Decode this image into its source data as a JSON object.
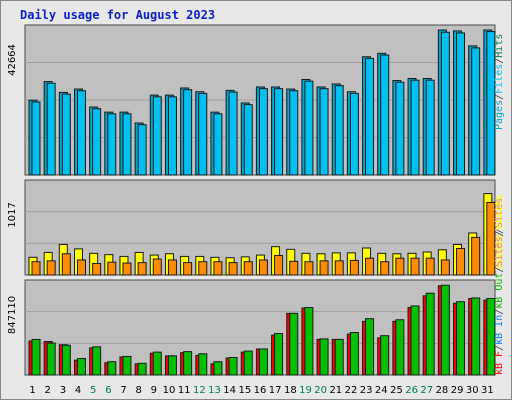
{
  "title": "Daily usage for August 2023",
  "colors": {
    "background": "#E8E8E8",
    "plot_bg": "#C0C0C0",
    "border": "#4A4A4A",
    "title": "#1020D0",
    "hits": "#00805C",
    "files": "#00C0F0",
    "pages": "#00A8D0",
    "visits": "#FFFF00",
    "sites": "#FF8C00",
    "kb_in": "#0080FF",
    "kb_out": "#00C000",
    "kb_f": "#FF0000",
    "weekend_label": "#008040"
  },
  "chart_data": [
    {
      "type": "bar",
      "panel": "hits-files-pages",
      "ymax_label": "42664",
      "legend": [
        "Pages",
        "/",
        "Files",
        "/",
        "Hits"
      ],
      "categories": [
        "1",
        "2",
        "3",
        "4",
        "5",
        "6",
        "7",
        "8",
        "9",
        "10",
        "11",
        "12",
        "13",
        "14",
        "15",
        "16",
        "17",
        "18",
        "19",
        "20",
        "21",
        "22",
        "23",
        "24",
        "25",
        "26",
        "27",
        "28",
        "29",
        "30",
        "31"
      ],
      "weekend_days": [
        "5",
        "6",
        "12",
        "13",
        "19",
        "20",
        "26",
        "27"
      ],
      "ylim": [
        0,
        42664
      ],
      "series": [
        {
          "name": "Hits",
          "values": [
            22000,
            27500,
            24300,
            25300,
            20000,
            18500,
            18500,
            15300,
            23500,
            23500,
            25600,
            24500,
            18500,
            24900,
            21200,
            25900,
            25900,
            25300,
            28100,
            25900,
            26800,
            24500,
            34800,
            35800,
            27800,
            28400,
            28400,
            42664,
            42400,
            38000,
            42664
          ]
        },
        {
          "name": "Files",
          "values": [
            21500,
            27000,
            23800,
            24800,
            19500,
            18000,
            18000,
            14800,
            23000,
            23000,
            25100,
            24000,
            18000,
            24400,
            20700,
            25400,
            25400,
            24800,
            27600,
            25400,
            26300,
            24000,
            34300,
            35300,
            27300,
            27900,
            27900,
            42000,
            41800,
            37400,
            42200
          ]
        }
      ]
    },
    {
      "type": "bar",
      "panel": "visits-sites",
      "ymax_label": "1017",
      "legend": [
        "Visits",
        "/",
        "Sites"
      ],
      "categories": [
        "1",
        "2",
        "3",
        "4",
        "5",
        "6",
        "7",
        "8",
        "9",
        "10",
        "11",
        "12",
        "13",
        "14",
        "15",
        "16",
        "17",
        "18",
        "19",
        "20",
        "21",
        "22",
        "23",
        "24",
        "25",
        "26",
        "27",
        "28",
        "29",
        "30",
        "31"
      ],
      "ylim": [
        0,
        1017
      ],
      "series": [
        {
          "name": "Visits",
          "values": [
            200,
            255,
            345,
            295,
            245,
            230,
            210,
            255,
            225,
            240,
            210,
            210,
            200,
            195,
            205,
            225,
            320,
            290,
            245,
            240,
            250,
            250,
            305,
            245,
            240,
            245,
            260,
            285,
            345,
            475,
            920
          ]
        },
        {
          "name": "Sites",
          "values": [
            150,
            160,
            240,
            170,
            130,
            145,
            135,
            140,
            180,
            170,
            140,
            150,
            150,
            140,
            150,
            170,
            220,
            155,
            150,
            160,
            160,
            165,
            190,
            150,
            190,
            190,
            190,
            170,
            300,
            425,
            820
          ]
        }
      ]
    },
    {
      "type": "bar",
      "panel": "kbf-kbin-kbout",
      "ymax_label": "847110",
      "legend": [
        "kB F",
        "/",
        "kB In",
        "/",
        "kB Out",
        "/",
        "Sites",
        "/",
        "Visits"
      ],
      "categories": [
        "1",
        "2",
        "3",
        "4",
        "5",
        "6",
        "7",
        "8",
        "9",
        "10",
        "11",
        "12",
        "13",
        "14",
        "15",
        "16",
        "17",
        "18",
        "19",
        "20",
        "21",
        "22",
        "23",
        "24",
        "25",
        "26",
        "27",
        "28",
        "29",
        "30",
        "31"
      ],
      "ylim": [
        0,
        847110
      ],
      "series": [
        {
          "name": "kB F",
          "values": [
            320000,
            315000,
            285000,
            140000,
            255000,
            115000,
            170000,
            105000,
            205000,
            180000,
            210000,
            185000,
            105000,
            160000,
            215000,
            245000,
            375000,
            580000,
            630000,
            335000,
            335000,
            385000,
            505000,
            350000,
            505000,
            635000,
            745000,
            840000,
            675000,
            720000,
            705000
          ]
        },
        {
          "name": "kB Out",
          "values": [
            335000,
            300000,
            280000,
            155000,
            265000,
            125000,
            175000,
            110000,
            215000,
            180000,
            220000,
            200000,
            125000,
            165000,
            225000,
            245000,
            390000,
            580000,
            635000,
            340000,
            335000,
            400000,
            530000,
            370000,
            520000,
            650000,
            770000,
            845000,
            690000,
            725000,
            720000
          ]
        }
      ]
    }
  ]
}
